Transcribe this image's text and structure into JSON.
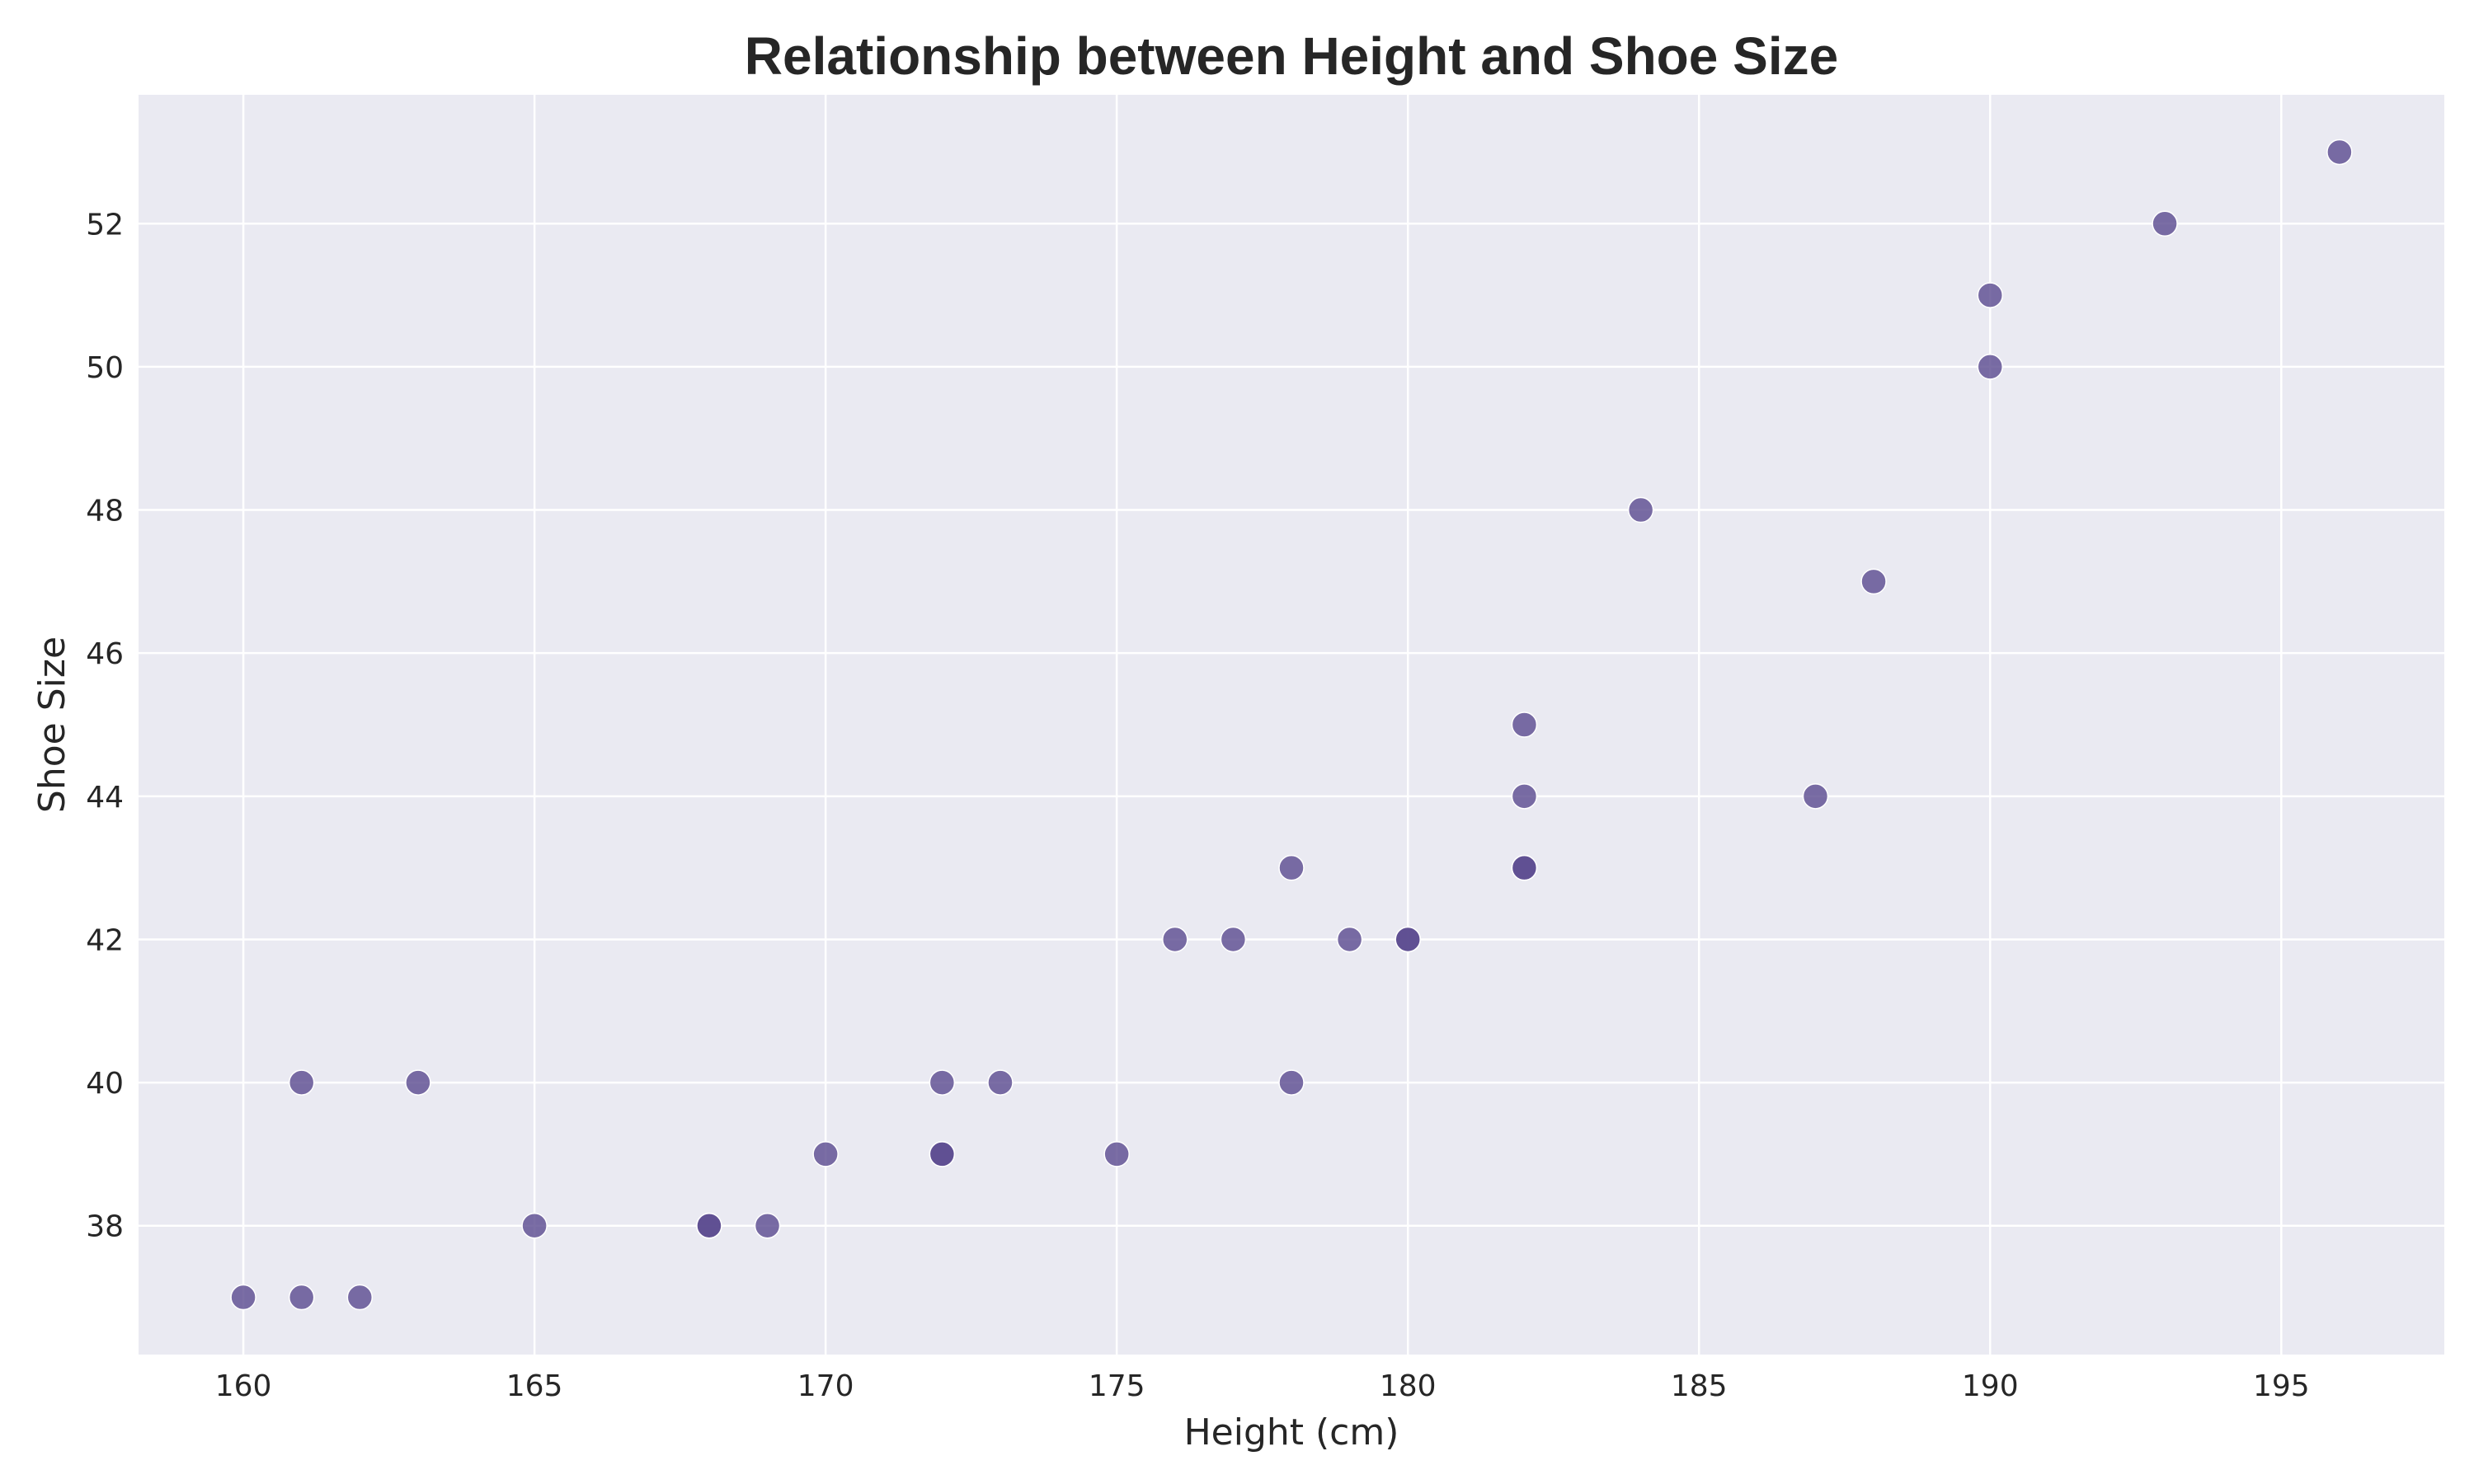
{
  "chart_data": {
    "type": "scatter",
    "title": "Relationship between Height and Shoe Size",
    "xlabel": "Height (cm)",
    "ylabel": "Shoe Size",
    "xlim": [
      158.2,
      197.8
    ],
    "ylim": [
      36.2,
      53.8
    ],
    "xticks": [
      160,
      165,
      170,
      175,
      180,
      185,
      190,
      195
    ],
    "yticks": [
      38,
      40,
      42,
      44,
      46,
      48,
      50,
      52
    ],
    "grid": true,
    "background_color": "#eaeaf2",
    "point_color": "#5a4a8e",
    "points": [
      {
        "x": 160,
        "y": 37
      },
      {
        "x": 161,
        "y": 37
      },
      {
        "x": 162,
        "y": 37
      },
      {
        "x": 161,
        "y": 40
      },
      {
        "x": 163,
        "y": 40
      },
      {
        "x": 165,
        "y": 38
      },
      {
        "x": 168,
        "y": 38
      },
      {
        "x": 168,
        "y": 38
      },
      {
        "x": 169,
        "y": 38
      },
      {
        "x": 170,
        "y": 39
      },
      {
        "x": 172,
        "y": 39
      },
      {
        "x": 172,
        "y": 39
      },
      {
        "x": 172,
        "y": 40
      },
      {
        "x": 173,
        "y": 40
      },
      {
        "x": 175,
        "y": 39
      },
      {
        "x": 176,
        "y": 42
      },
      {
        "x": 177,
        "y": 42
      },
      {
        "x": 178,
        "y": 43
      },
      {
        "x": 178,
        "y": 40
      },
      {
        "x": 179,
        "y": 42
      },
      {
        "x": 180,
        "y": 42
      },
      {
        "x": 180,
        "y": 42
      },
      {
        "x": 182,
        "y": 45
      },
      {
        "x": 182,
        "y": 44
      },
      {
        "x": 182,
        "y": 43
      },
      {
        "x": 182,
        "y": 43
      },
      {
        "x": 184,
        "y": 48
      },
      {
        "x": 187,
        "y": 44
      },
      {
        "x": 188,
        "y": 47
      },
      {
        "x": 190,
        "y": 51
      },
      {
        "x": 190,
        "y": 50
      },
      {
        "x": 193,
        "y": 52
      },
      {
        "x": 196,
        "y": 53
      }
    ]
  }
}
